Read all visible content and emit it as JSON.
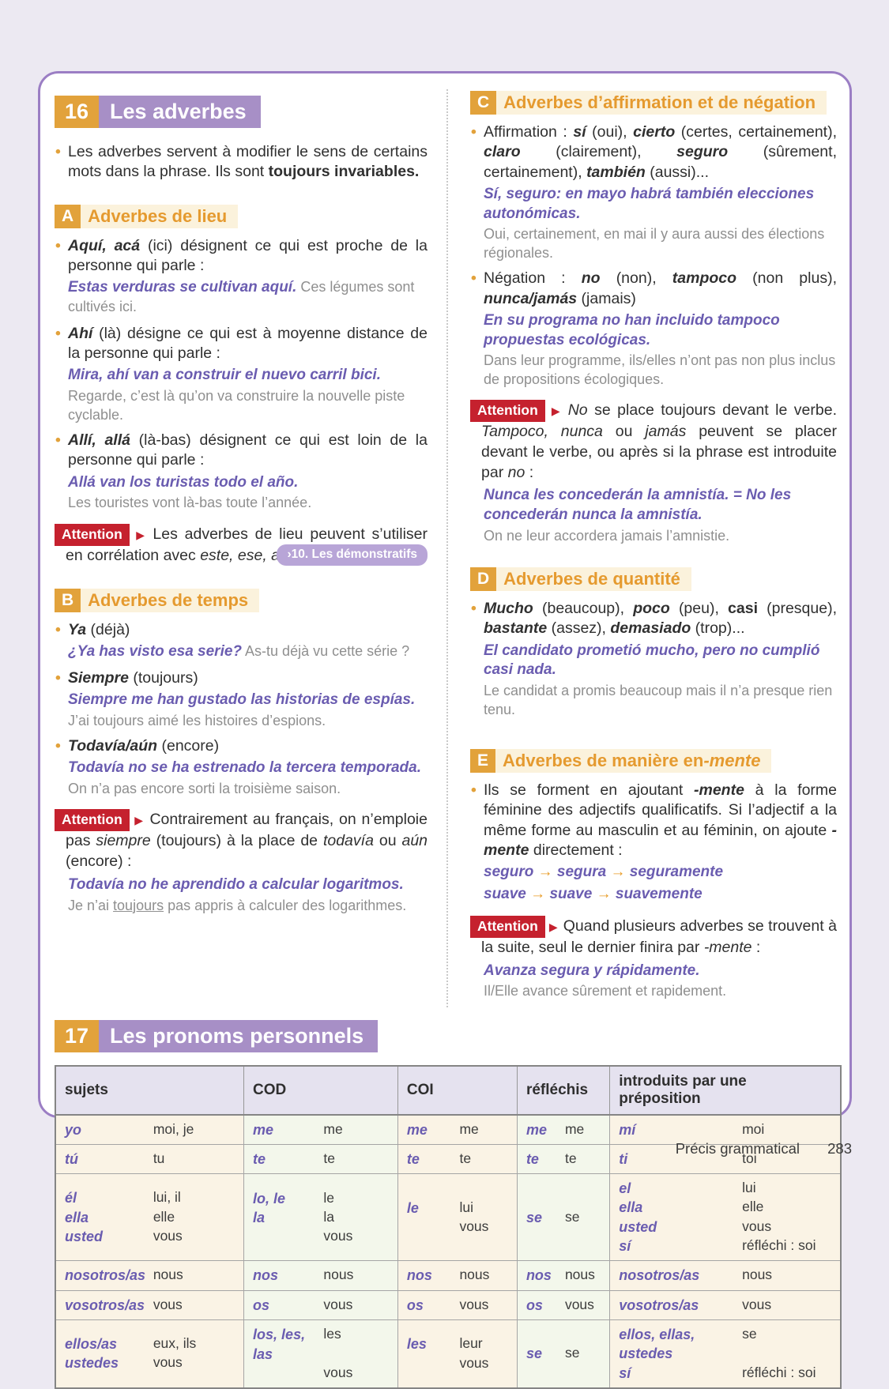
{
  "ui": {
    "attention_label": "Attention",
    "ref_pill": "›10. Les démonstratifs",
    "colors": {
      "accent_orange": "#e2a23b",
      "accent_purple": "#a78fc6",
      "attention_red": "#c5212e",
      "example_purple": "#6a5cb0",
      "translation_gray": "#8f8f8f",
      "card_border": "#9b7ec4",
      "page_bg": "#ece9f2"
    }
  },
  "footer": {
    "label": "Précis grammatical",
    "page": "283"
  },
  "section16": {
    "number": "16",
    "title": "Les adverbes",
    "intro": [
      {
        "t": "Les adverbes servent à modifier le sens de certains mots dans la phrase. Ils sont "
      },
      {
        "t": "toujours invariables.",
        "s": "b"
      }
    ],
    "a": {
      "letter": "A",
      "title": "Adverbes de lieu",
      "b1": [
        {
          "t": "Aquí, acá",
          "s": "bi"
        },
        {
          "t": " (ici) désignent ce qui est proche de la personne qui parle :"
        }
      ],
      "e1": [
        {
          "t": "Estas verduras se cultivan aquí.",
          "s": "p"
        },
        {
          "t": " Ces légumes sont cultivés ici.",
          "s": "g"
        }
      ],
      "b2": [
        {
          "t": "Ahí",
          "s": "bi"
        },
        {
          "t": " (là) désigne ce qui est à moyenne distance de la personne qui parle :"
        }
      ],
      "e2": [
        {
          "t": "Mira, ahí van a construir el nuevo carril bici.",
          "s": "p"
        }
      ],
      "t2": "Regarde, c’est là qu’on va construire la nouvelle piste cyclable.",
      "b3": [
        {
          "t": "Allí, allá",
          "s": "bi"
        },
        {
          "t": " (là-bas) désignent ce qui est loin de la personne qui parle :"
        }
      ],
      "e3": [
        {
          "t": "Allá van los turistas todo el año.",
          "s": "p"
        }
      ],
      "t3": "Les touristes vont là-bas toute l’année.",
      "att": [
        {
          "t": "Les adverbes de lieu peuvent s’utiliser en corrélation avec "
        },
        {
          "t": "este, ese, aquel",
          "s": "i"
        },
        {
          "t": "."
        }
      ]
    },
    "b": {
      "letter": "B",
      "title": "Adverbes de temps",
      "b1": [
        {
          "t": "Ya",
          "s": "bi"
        },
        {
          "t": " (déjà)"
        }
      ],
      "e1": [
        {
          "t": "¿Ya has visto esa serie?",
          "s": "p"
        },
        {
          "t": " As-tu déjà vu cette série ?",
          "s": "g"
        }
      ],
      "b2": [
        {
          "t": "Siempre",
          "s": "bi"
        },
        {
          "t": " (toujours)"
        }
      ],
      "e2": [
        {
          "t": "Siempre me han gustado las historias de espías.",
          "s": "p"
        }
      ],
      "t2": "J’ai toujours aimé les histoires d’espions.",
      "b3": [
        {
          "t": "Todavía/aún",
          "s": "bi"
        },
        {
          "t": " (encore)"
        }
      ],
      "e3": [
        {
          "t": "Todavía no se ha estrenado la tercera temporada.",
          "s": "p"
        }
      ],
      "t3": "On n’a pas encore sorti la troisième saison.",
      "att": [
        {
          "t": "Contrairement au français, on n’emploie pas "
        },
        {
          "t": "siempre",
          "s": "i"
        },
        {
          "t": " (toujours) à la place de "
        },
        {
          "t": "todavía",
          "s": "i"
        },
        {
          "t": " ou "
        },
        {
          "t": "aún",
          "s": "i"
        },
        {
          "t": " (encore) :"
        }
      ],
      "att_e": [
        {
          "t": "Todavía no he aprendido a calcular logaritmos.",
          "s": "p"
        }
      ],
      "att_t": [
        {
          "t": "Je n’ai ",
          "s": "g"
        },
        {
          "t": "toujours",
          "s": "gu"
        },
        {
          "t": " pas appris à calculer des logarithmes.",
          "s": "g"
        }
      ]
    },
    "c": {
      "letter": "C",
      "title": "Adverbes d’affirmation et de négation",
      "b1": [
        {
          "t": "Affirmation : "
        },
        {
          "t": "sí",
          "s": "bi"
        },
        {
          "t": " (oui), "
        },
        {
          "t": "cierto",
          "s": "bi"
        },
        {
          "t": " (certes, certainement), "
        },
        {
          "t": "claro",
          "s": "bi"
        },
        {
          "t": " (clairement), "
        },
        {
          "t": "seguro",
          "s": "bi"
        },
        {
          "t": " (sûrement, certainement), "
        },
        {
          "t": "también",
          "s": "bi"
        },
        {
          "t": " (aussi)..."
        }
      ],
      "e1": [
        {
          "t": "Sí, seguro: en mayo habrá ",
          "s": "p"
        },
        {
          "t": "también",
          "s": "pb"
        },
        {
          "t": " elecciones autonómicas.",
          "s": "p"
        }
      ],
      "t1": "Oui, certainement, en mai il y aura aussi des élections régionales.",
      "b2": [
        {
          "t": "Négation : "
        },
        {
          "t": "no",
          "s": "bi"
        },
        {
          "t": " (non), "
        },
        {
          "t": "tampoco",
          "s": "bi"
        },
        {
          "t": " (non plus), "
        },
        {
          "t": "nunca/jamás",
          "s": "bi"
        },
        {
          "t": " (jamais)"
        }
      ],
      "e2": [
        {
          "t": "En su programa no han incluido ",
          "s": "p"
        },
        {
          "t": "tampoco",
          "s": "pb"
        },
        {
          "t": " propuestas ecológicas.",
          "s": "p"
        }
      ],
      "t2": "Dans leur programme, ils/elles n’ont pas non plus inclus de propositions écologiques.",
      "att": [
        {
          "t": "No",
          "s": "i"
        },
        {
          "t": " se place toujours devant le verbe. "
        },
        {
          "t": "Tampoco, nunca",
          "s": "i"
        },
        {
          "t": " ou "
        },
        {
          "t": "jamás",
          "s": "i"
        },
        {
          "t": " peuvent se placer devant le verbe, ou après si la phrase est introduite par "
        },
        {
          "t": "no",
          "s": "i"
        },
        {
          "t": " :"
        }
      ],
      "att_e": [
        {
          "t": "Nunca",
          "s": "pb"
        },
        {
          "t": " les concederán la amnistía. = ",
          "s": "p"
        },
        {
          "t": "No",
          "s": "pb"
        },
        {
          "t": " les concederán ",
          "s": "p"
        },
        {
          "t": "nunca",
          "s": "pb"
        },
        {
          "t": " la amnistía.",
          "s": "p"
        }
      ],
      "att_t": "On ne leur accordera jamais l’amnistie."
    },
    "d": {
      "letter": "D",
      "title": "Adverbes de quantité",
      "b1": [
        {
          "t": "Mucho",
          "s": "bi"
        },
        {
          "t": " (beaucoup), "
        },
        {
          "t": "poco",
          "s": "bi"
        },
        {
          "t": " (peu), "
        },
        {
          "t": "casi",
          "s": "b"
        },
        {
          "t": " (presque), "
        },
        {
          "t": "bastante",
          "s": "bi"
        },
        {
          "t": " (assez), "
        },
        {
          "t": "demasiado",
          "s": "bi"
        },
        {
          "t": " (trop)..."
        }
      ],
      "e1": [
        {
          "t": "El candidato prometió ",
          "s": "p"
        },
        {
          "t": "mucho",
          "s": "pb"
        },
        {
          "t": ", pero no cumplió ",
          "s": "p"
        },
        {
          "t": "casi",
          "s": "pb"
        },
        {
          "t": " nada.",
          "s": "p"
        }
      ],
      "t1": "Le candidat a promis beaucoup mais il n’a presque rien tenu."
    },
    "e": {
      "letter": "E",
      "title": [
        {
          "t": "Adverbes de manière en "
        },
        {
          "t": "-mente",
          "s": "i"
        }
      ],
      "b1": [
        {
          "t": "Ils se forment en ajoutant "
        },
        {
          "t": "-mente",
          "s": "bi"
        },
        {
          "t": " à la forme féminine des adjectifs qualificatifs. Si l’adjectif a la même forme au masculin et au féminin, on ajoute "
        },
        {
          "t": "-mente",
          "s": "bi"
        },
        {
          "t": " directement :"
        }
      ],
      "e1": [
        {
          "t": "seguro ",
          "s": "p"
        },
        {
          "t": "→ ",
          "s": "a"
        },
        {
          "t": "segura ",
          "s": "p"
        },
        {
          "t": "→ ",
          "s": "a"
        },
        {
          "t": "seguramente",
          "s": "p"
        }
      ],
      "e2": [
        {
          "t": "suave ",
          "s": "p"
        },
        {
          "t": "→ ",
          "s": "a"
        },
        {
          "t": "suave ",
          "s": "p"
        },
        {
          "t": "→ ",
          "s": "a"
        },
        {
          "t": "suavemente",
          "s": "p"
        }
      ],
      "att": [
        {
          "t": "Quand plusieurs adverbes se trouvent à la suite, seul le dernier finira par "
        },
        {
          "t": "-mente",
          "s": "i"
        },
        {
          "t": " :"
        }
      ],
      "att_e": [
        {
          "t": "Avanza segura y ",
          "s": "p"
        },
        {
          "t": "rápidamente.",
          "s": "pb"
        }
      ],
      "att_t": "Il/Elle avance sûrement et rapidement."
    }
  },
  "section17": {
    "number": "17",
    "title": "Les pronoms personnels",
    "table": {
      "headers": [
        "sujets",
        "COD",
        "COI",
        "réfléchis",
        "introduits par une préposition"
      ],
      "rows": [
        [
          [
            [
              "yo",
              "moi, je"
            ]
          ],
          [
            [
              "me",
              "me"
            ]
          ],
          [
            [
              "me",
              "me"
            ]
          ],
          [
            [
              "me",
              "me"
            ]
          ],
          [
            [
              "mí",
              "moi"
            ]
          ]
        ],
        [
          [
            [
              "tú",
              "tu"
            ]
          ],
          [
            [
              "te",
              "te"
            ]
          ],
          [
            [
              "te",
              "te"
            ]
          ],
          [
            [
              "te",
              "te"
            ]
          ],
          [
            [
              "ti",
              "toi"
            ]
          ]
        ],
        [
          [
            [
              "él",
              "lui, il"
            ],
            [
              "ella",
              "elle"
            ],
            [
              "usted",
              "vous"
            ]
          ],
          [
            [
              "lo, le",
              "le"
            ],
            [
              "la",
              "la"
            ],
            [
              "",
              "vous"
            ]
          ],
          [
            [
              "le",
              "lui"
            ],
            [
              "",
              "vous"
            ]
          ],
          [
            [
              "se",
              "se"
            ]
          ],
          [
            [
              "el",
              "lui"
            ],
            [
              "ella",
              "elle"
            ],
            [
              "usted",
              "vous"
            ],
            [
              "sí",
              "réfléchi : soi"
            ]
          ]
        ],
        [
          [
            [
              "nosotros/as",
              "nous"
            ]
          ],
          [
            [
              "nos",
              "nous"
            ]
          ],
          [
            [
              "nos",
              "nous"
            ]
          ],
          [
            [
              "nos",
              "nous"
            ]
          ],
          [
            [
              "nosotros/as",
              "nous"
            ]
          ]
        ],
        [
          [
            [
              "vosotros/as",
              "vous"
            ]
          ],
          [
            [
              "os",
              "vous"
            ]
          ],
          [
            [
              "os",
              "vous"
            ]
          ],
          [
            [
              "os",
              "vous"
            ]
          ],
          [
            [
              "vosotros/as",
              "vous"
            ]
          ]
        ],
        [
          [
            [
              "ellos/as",
              "eux, ils"
            ],
            [
              "ustedes",
              "vous"
            ]
          ],
          [
            [
              "los, les, las",
              "les"
            ],
            [
              "",
              "vous"
            ]
          ],
          [
            [
              "les",
              "leur"
            ],
            [
              "",
              "vous"
            ]
          ],
          [
            [
              "se",
              "se"
            ]
          ],
          [
            [
              "ellos, ellas, ustedes",
              "se"
            ],
            [
              "sí",
              "réfléchi : soi"
            ]
          ]
        ]
      ]
    }
  }
}
